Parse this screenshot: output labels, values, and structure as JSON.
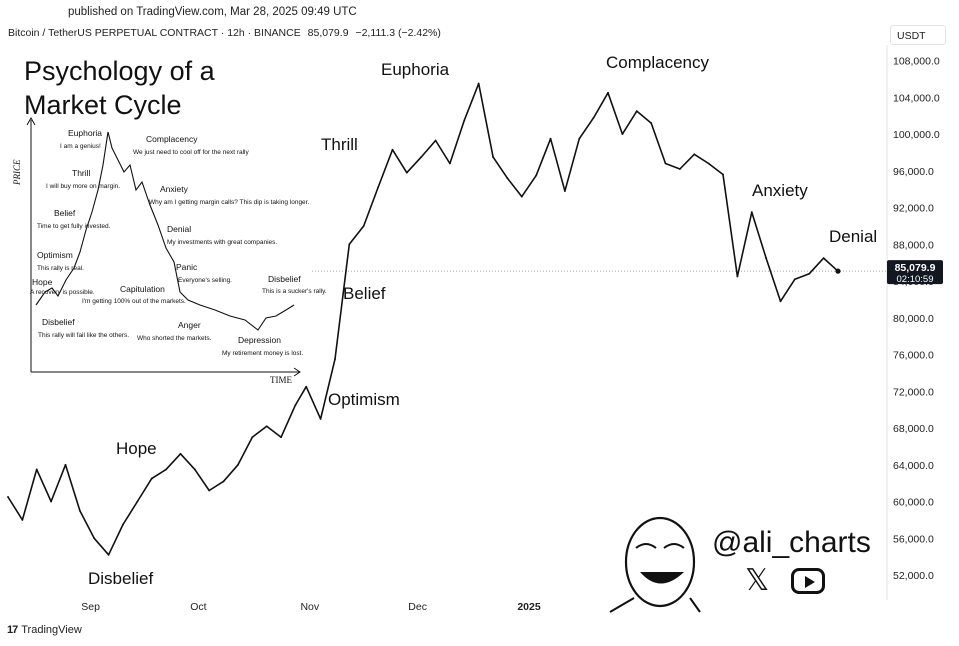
{
  "header": {
    "published": "published on TradingView.com, Mar 28, 2025 09:49 UTC",
    "symbol": "Bitcoin / TetherUS PERPETUAL CONTRACT · 12h · BINANCE",
    "last": "85,079.9",
    "change": "−2,111.3 (−2.42%)",
    "currency": "USDT"
  },
  "footer": {
    "brand": "TradingView",
    "brand_icon": "tradingview-logo-icon"
  },
  "watermark": {
    "handle": "@ali_charts",
    "icons": [
      "avatar-cartoon-icon",
      "x-logo-icon",
      "youtube-icon"
    ]
  },
  "price_tag": {
    "price": "85,079.9",
    "countdown": "02:10:59"
  },
  "inset": {
    "title_line1": "Psychology of a",
    "title_line2": "Market Cycle",
    "axis_y": "PRICE",
    "axis_x": "TIME",
    "labels": [
      {
        "title": "Euphoria",
        "text": "I am a genius!"
      },
      {
        "title": "Complacency",
        "text": "We just need to cool off for the next rally"
      },
      {
        "title": "Thrill",
        "text": "I will buy more on margin."
      },
      {
        "title": "Anxiety",
        "text": "Why am I getting margin calls? This dip is taking longer."
      },
      {
        "title": "Belief",
        "text": "Time to get fully invested."
      },
      {
        "title": "Denial",
        "text": "My investments with great companies."
      },
      {
        "title": "Optimism",
        "text": "This rally is real."
      },
      {
        "title": "Panic",
        "text": "Everyone's selling."
      },
      {
        "title": "Hope",
        "text": "A recovery is possible."
      },
      {
        "title": "Capitulation",
        "text": "I'm getting 100% out of the markets."
      },
      {
        "title": "Disbelief",
        "text": "This is a sucker's rally."
      },
      {
        "title": "Disbelief",
        "text": "This rally will fail like the others."
      },
      {
        "title": "Anger",
        "text": "Who shorted the markets."
      },
      {
        "title": "Depression",
        "text": "My retirement money is lost."
      }
    ]
  },
  "chart_data": {
    "type": "line",
    "title": "Bitcoin / TetherUS PERPETUAL CONTRACT · 12h · BINANCE",
    "x_ticks": [
      "Sep",
      "Oct",
      "Nov",
      "Dec",
      "2025"
    ],
    "y_ticks": [
      52000,
      56000,
      60000,
      64000,
      68000,
      72000,
      76000,
      80000,
      84000,
      88000,
      92000,
      96000,
      100000,
      104000,
      108000
    ],
    "y_tick_labels": [
      "52,000.0",
      "56,000.0",
      "60,000.0",
      "64,000.0",
      "68,000.0",
      "72,000.0",
      "76,000.0",
      "80,000.0",
      "84,000.0",
      "88,000.0",
      "92,000.0",
      "96,000.0",
      "100,000.0",
      "104,000.0",
      "108,000.0"
    ],
    "ylim": [
      49500,
      109700
    ],
    "last_price": 85079.9,
    "series": [
      {
        "color": "#111111",
        "x": [
          "2024-08-09",
          "2024-08-13",
          "2024-08-17",
          "2024-08-21",
          "2024-08-25",
          "2024-08-29",
          "2024-09-02",
          "2024-09-06",
          "2024-09-10",
          "2024-09-14",
          "2024-09-18",
          "2024-09-22",
          "2024-09-26",
          "2024-09-30",
          "2024-10-04",
          "2024-10-08",
          "2024-10-12",
          "2024-10-16",
          "2024-10-20",
          "2024-10-24",
          "2024-10-28",
          "2024-10-31",
          "2024-11-04",
          "2024-11-08",
          "2024-11-12",
          "2024-11-16",
          "2024-11-20",
          "2024-11-24",
          "2024-11-28",
          "2024-12-02",
          "2024-12-06",
          "2024-12-10",
          "2024-12-14",
          "2024-12-18",
          "2024-12-22",
          "2024-12-26",
          "2024-12-30",
          "2025-01-03",
          "2025-01-07",
          "2025-01-11",
          "2025-01-15",
          "2025-01-19",
          "2025-01-23",
          "2025-01-27",
          "2025-01-31",
          "2025-02-04",
          "2025-02-08",
          "2025-02-12",
          "2025-02-16",
          "2025-02-20",
          "2025-02-24",
          "2025-02-28",
          "2025-03-04",
          "2025-03-08",
          "2025-03-12",
          "2025-03-16",
          "2025-03-20",
          "2025-03-24",
          "2025-03-28"
        ],
        "y": [
          60500,
          58000,
          63500,
          60000,
          64000,
          59000,
          56000,
          54200,
          57500,
          60000,
          62500,
          63500,
          65200,
          63500,
          61200,
          62200,
          64000,
          67000,
          68200,
          67000,
          70500,
          72500,
          69000,
          75500,
          88000,
          90000,
          94200,
          98300,
          95800,
          97500,
          99300,
          96800,
          101500,
          105500,
          97500,
          95200,
          93200,
          95500,
          99500,
          93800,
          99500,
          101800,
          104500,
          100000,
          102500,
          101200,
          96800,
          96200,
          97800,
          96800,
          95600,
          84500,
          91500,
          86500,
          81800,
          84200,
          84800,
          86500,
          85080
        ]
      }
    ],
    "annotations": [
      "Disbelief",
      "Hope",
      "Optimism",
      "Belief",
      "Thrill",
      "Euphoria",
      "Complacency",
      "Anxiety",
      "Denial"
    ]
  }
}
